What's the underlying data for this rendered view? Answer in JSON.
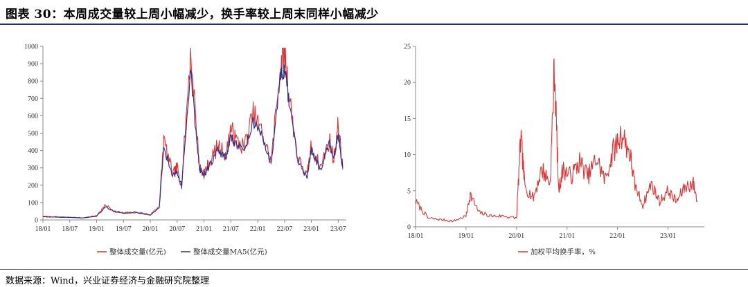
{
  "title": "图表 30：本周成交量较上周小幅减少，换手率较上周末同样小幅减少",
  "source": "数据来源：Wind，兴业证券经济与金融研究院整理",
  "colors": {
    "red": "#e23030",
    "blue": "#2e3192",
    "rule": "#1f3b73"
  },
  "chart_data": [
    {
      "type": "line",
      "xlabel": "",
      "ylabel": "",
      "ylim": [
        0,
        1000
      ],
      "yticks": [
        "0",
        "100",
        "200",
        "300",
        "400",
        "500",
        "600",
        "700",
        "800",
        "900",
        "1000"
      ],
      "xticks": [
        "18/01",
        "18/07",
        "19/01",
        "19/07",
        "20/01",
        "20/07",
        "21/01",
        "21/07",
        "22/01",
        "22/07",
        "23/01",
        "23/07"
      ],
      "legend_position": "bottom",
      "series": [
        {
          "name": "整体成交量(亿元)",
          "color": "#e23030",
          "x": [
            "18/01",
            "18/04",
            "18/07",
            "18/10",
            "19/01",
            "19/03",
            "19/05",
            "19/07",
            "19/10",
            "20/01",
            "20/03",
            "20/04",
            "20/06",
            "20/07",
            "20/08",
            "20/10",
            "20/12",
            "21/01",
            "21/02",
            "21/04",
            "21/06",
            "21/07",
            "21/08",
            "21/10",
            "21/12",
            "22/02",
            "22/04",
            "22/06",
            "22/07",
            "22/08",
            "22/10",
            "22/12",
            "23/01",
            "23/03",
            "23/05",
            "23/06",
            "23/07",
            "23/08"
          ],
          "values": [
            20,
            18,
            15,
            12,
            25,
            85,
            50,
            40,
            45,
            30,
            80,
            460,
            260,
            300,
            200,
            980,
            300,
            270,
            320,
            420,
            380,
            530,
            460,
            420,
            610,
            500,
            330,
            870,
            980,
            720,
            350,
            250,
            430,
            300,
            460,
            350,
            550,
            290
          ]
        },
        {
          "name": "整体成交量MA5(亿元)",
          "color": "#2e3192",
          "x": [
            "18/01",
            "18/04",
            "18/07",
            "18/10",
            "19/01",
            "19/03",
            "19/05",
            "19/07",
            "19/10",
            "20/01",
            "20/03",
            "20/04",
            "20/06",
            "20/07",
            "20/08",
            "20/10",
            "20/12",
            "21/01",
            "21/02",
            "21/04",
            "21/06",
            "21/07",
            "21/08",
            "21/10",
            "21/12",
            "22/02",
            "22/04",
            "22/06",
            "22/07",
            "22/08",
            "22/10",
            "22/12",
            "23/01",
            "23/03",
            "23/05",
            "23/06",
            "23/07",
            "23/08"
          ],
          "values": [
            18,
            16,
            14,
            11,
            22,
            75,
            48,
            38,
            42,
            28,
            70,
            420,
            250,
            280,
            195,
            850,
            290,
            260,
            300,
            400,
            360,
            490,
            440,
            400,
            570,
            480,
            320,
            820,
            860,
            680,
            340,
            240,
            410,
            290,
            440,
            340,
            490,
            300
          ]
        }
      ]
    },
    {
      "type": "line",
      "xlabel": "",
      "ylabel": "",
      "ylim": [
        0,
        25
      ],
      "yticks": [
        "0",
        "5",
        "10",
        "15",
        "20",
        "25"
      ],
      "xticks": [
        "18/01",
        "19/01",
        "20/01",
        "21/01",
        "22/01",
        "23/01"
      ],
      "legend_position": "bottom",
      "series": [
        {
          "name": "加权平均换手率，%",
          "color": "#e23030",
          "x": [
            "18/01",
            "18/04",
            "18/07",
            "18/10",
            "19/01",
            "19/02",
            "19/04",
            "19/07",
            "19/10",
            "20/01",
            "20/02",
            "20/03",
            "20/05",
            "20/07",
            "20/09",
            "20/10",
            "20/11",
            "20/12",
            "21/02",
            "21/04",
            "21/06",
            "21/08",
            "21/10",
            "21/12",
            "22/02",
            "22/04",
            "22/05",
            "22/07",
            "22/09",
            "22/11",
            "23/01",
            "23/03",
            "23/05",
            "23/07",
            "23/08"
          ],
          "values": [
            3.5,
            1.2,
            1.0,
            0.8,
            1.5,
            4.5,
            2.0,
            1.5,
            1.5,
            1.2,
            12.5,
            5.5,
            4.0,
            8.0,
            6.0,
            22.5,
            5.0,
            8.0,
            7.0,
            9.0,
            7.0,
            9.5,
            6.5,
            10.5,
            13.0,
            10.0,
            6.0,
            3.0,
            6.0,
            3.5,
            5.0,
            3.5,
            5.5,
            6.0,
            3.5
          ]
        }
      ]
    }
  ]
}
